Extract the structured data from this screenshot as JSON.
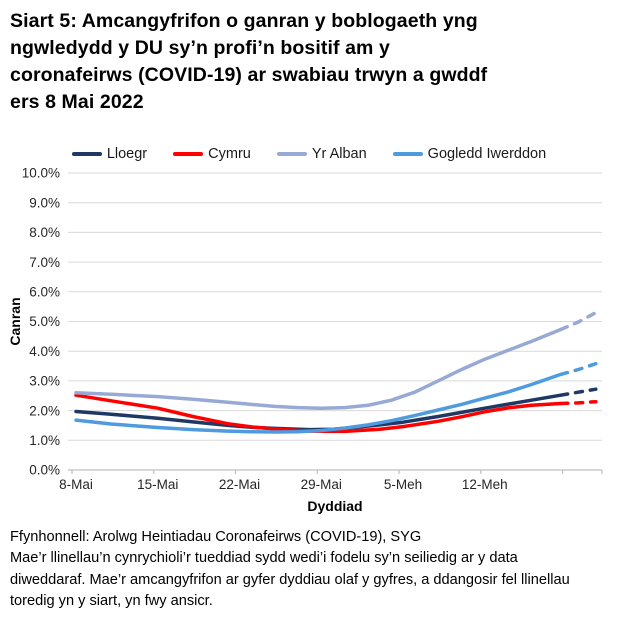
{
  "title": {
    "lines": [
      "Siart 5: Amcangyfrifon o ganran y boblogaeth yng",
      "ngwledydd y DU sy’n profi’n bositif am y",
      "coronafeirws (COVID-19) ar swabiau trwyn a gwddf",
      "ers 8 Mai 2022"
    ]
  },
  "chart_data": {
    "type": "line",
    "title": "Siart 5: Amcangyfrifon o ganran y boblogaeth yng ngwledydd y DU sy’n profi’n bositif am y coronafeirws (COVID-19) ar swabiau trwyn a gwddf ers 8 Mai 2022",
    "xlabel": "Dyddiad",
    "ylabel": "Canran",
    "x_unit": "dyddiau ers 8 Mai 2022",
    "ylim": [
      0,
      10
    ],
    "xlim_days": [
      -0.7,
      45
    ],
    "grid": true,
    "legend_position": "top",
    "y_tick_labels": [
      "0.0%",
      "1.0%",
      "2.0%",
      "3.0%",
      "4.0%",
      "5.0%",
      "6.0%",
      "7.0%",
      "8.0%",
      "9.0%",
      "10.0%"
    ],
    "x_ticks": [
      {
        "day": 0,
        "label": "8-Mai"
      },
      {
        "day": 7,
        "label": "15-Mai"
      },
      {
        "day": 14,
        "label": "22-Mai"
      },
      {
        "day": 21,
        "label": "29-Mai"
      },
      {
        "day": 28,
        "label": "5-Meh"
      },
      {
        "day": 35,
        "label": "12-Meh"
      }
    ],
    "series": [
      {
        "name": "Lloegr",
        "color": "#1F3864",
        "solid": [
          [
            0,
            1.97
          ],
          [
            3,
            1.88
          ],
          [
            7,
            1.74
          ],
          [
            10,
            1.62
          ],
          [
            13,
            1.5
          ],
          [
            15,
            1.44
          ],
          [
            17,
            1.4
          ],
          [
            20,
            1.36
          ],
          [
            22,
            1.37
          ],
          [
            24,
            1.44
          ],
          [
            26,
            1.52
          ],
          [
            28,
            1.61
          ],
          [
            31,
            1.8
          ],
          [
            33,
            1.94
          ],
          [
            35,
            2.08
          ],
          [
            37,
            2.22
          ],
          [
            39,
            2.35
          ],
          [
            41.5,
            2.52
          ]
        ],
        "dashed": [
          [
            41.5,
            2.52
          ],
          [
            43,
            2.62
          ],
          [
            44.5,
            2.72
          ]
        ]
      },
      {
        "name": "Cymru",
        "color": "#FF0000",
        "solid": [
          [
            0,
            2.52
          ],
          [
            3,
            2.33
          ],
          [
            7,
            2.08
          ],
          [
            10,
            1.8
          ],
          [
            13,
            1.56
          ],
          [
            15,
            1.45
          ],
          [
            17,
            1.38
          ],
          [
            20,
            1.31
          ],
          [
            23,
            1.3
          ],
          [
            26,
            1.37
          ],
          [
            28,
            1.46
          ],
          [
            31,
            1.64
          ],
          [
            33,
            1.79
          ],
          [
            35,
            1.96
          ],
          [
            37,
            2.09
          ],
          [
            39,
            2.18
          ],
          [
            41.5,
            2.24
          ]
        ],
        "dashed": [
          [
            41.5,
            2.24
          ],
          [
            43,
            2.26
          ],
          [
            44.5,
            2.3
          ]
        ]
      },
      {
        "name": "Yr Alban",
        "color": "#97A9D4",
        "solid": [
          [
            0,
            2.6
          ],
          [
            3,
            2.55
          ],
          [
            7,
            2.47
          ],
          [
            10,
            2.38
          ],
          [
            13,
            2.28
          ],
          [
            15,
            2.21
          ],
          [
            17,
            2.14
          ],
          [
            19,
            2.1
          ],
          [
            21,
            2.08
          ],
          [
            23,
            2.1
          ],
          [
            25,
            2.18
          ],
          [
            27,
            2.35
          ],
          [
            29,
            2.62
          ],
          [
            31,
            3.0
          ],
          [
            33,
            3.38
          ],
          [
            35,
            3.73
          ],
          [
            37,
            4.03
          ],
          [
            39,
            4.33
          ],
          [
            41.5,
            4.73
          ]
        ],
        "dashed": [
          [
            41.5,
            4.73
          ],
          [
            43,
            4.98
          ],
          [
            44.5,
            5.3
          ]
        ]
      },
      {
        "name": "Gogledd Iwerddon",
        "color": "#4E9BDF",
        "solid": [
          [
            0,
            1.68
          ],
          [
            3,
            1.55
          ],
          [
            7,
            1.43
          ],
          [
            10,
            1.36
          ],
          [
            13,
            1.31
          ],
          [
            15,
            1.29
          ],
          [
            17,
            1.28
          ],
          [
            19,
            1.29
          ],
          [
            21,
            1.33
          ],
          [
            23,
            1.41
          ],
          [
            25,
            1.52
          ],
          [
            27,
            1.66
          ],
          [
            29,
            1.83
          ],
          [
            31,
            2.02
          ],
          [
            33,
            2.21
          ],
          [
            35,
            2.42
          ],
          [
            37,
            2.63
          ],
          [
            39,
            2.88
          ],
          [
            41.5,
            3.22
          ]
        ],
        "dashed": [
          [
            41.5,
            3.22
          ],
          [
            43,
            3.38
          ],
          [
            44.5,
            3.58
          ]
        ]
      }
    ],
    "colors": {
      "gridline": "#D9D9D9",
      "axis": "#BFBFBF",
      "tick_text": "#262626"
    }
  },
  "footer": {
    "source": "Ffynhonnell: Arolwg Heintiadau Coronafeirws (COVID-19), SYG",
    "note_lines": [
      "Mae’r llinellau’n cynrychioli’r tueddiad sydd wedi’i fodelu sy’n seiliedig ar y data",
      "diweddaraf. Mae’r amcangyfrifon ar gyfer dyddiau olaf y gyfres, a ddangosir fel llinellau",
      "toredig yn y siart, yn fwy ansicr."
    ]
  }
}
